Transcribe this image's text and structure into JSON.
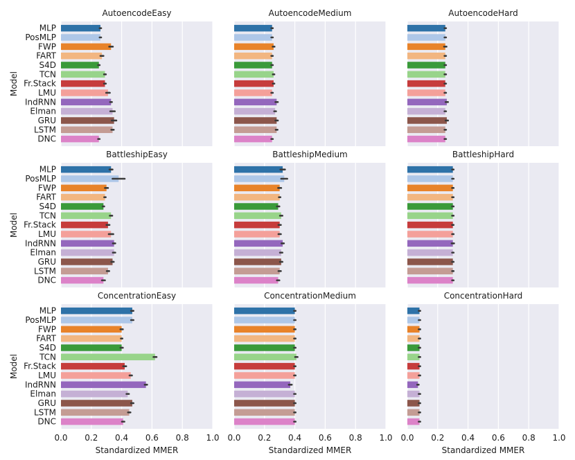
{
  "chart_data": {
    "type": "bar",
    "orientation": "horizontal",
    "grid": true,
    "xlabel": "Standardized MMER",
    "ylabel": "Model",
    "xlim": [
      0.0,
      1.0
    ],
    "xticks": [
      "0.0",
      "0.2",
      "0.4",
      "0.6",
      "0.8",
      "1.0"
    ],
    "models": [
      "MLP",
      "PosMLP",
      "FWP",
      "FART",
      "S4D",
      "TCN",
      "Fr.Stack",
      "LMU",
      "IndRNN",
      "Elman",
      "GRU",
      "LSTM",
      "DNC"
    ],
    "colors": [
      "#2e72a8",
      "#aec7e8",
      "#e8832a",
      "#f2b681",
      "#3a9a3a",
      "#98d48a",
      "#c63c3c",
      "#f4a09a",
      "#9467bd",
      "#c5b0d5",
      "#8c564b",
      "#c49c94",
      "#dc82c8"
    ],
    "panels": [
      {
        "title": "AutoencodeEasy",
        "values": [
          0.26,
          0.26,
          0.33,
          0.27,
          0.25,
          0.29,
          0.29,
          0.31,
          0.33,
          0.34,
          0.35,
          0.34,
          0.25
        ],
        "err": [
          0.005,
          0.005,
          0.012,
          0.01,
          0.005,
          0.006,
          0.006,
          0.012,
          0.006,
          0.015,
          0.015,
          0.008,
          0.005
        ]
      },
      {
        "title": "AutoencodeMedium",
        "values": [
          0.25,
          0.25,
          0.26,
          0.25,
          0.25,
          0.26,
          0.26,
          0.25,
          0.28,
          0.27,
          0.28,
          0.28,
          0.25
        ],
        "err": [
          0.005,
          0.005,
          0.006,
          0.005,
          0.005,
          0.005,
          0.005,
          0.005,
          0.008,
          0.006,
          0.008,
          0.006,
          0.005
        ]
      },
      {
        "title": "AutoencodeHard",
        "values": [
          0.25,
          0.25,
          0.25,
          0.25,
          0.25,
          0.25,
          0.25,
          0.25,
          0.26,
          0.25,
          0.26,
          0.25,
          0.25
        ],
        "err": [
          0.005,
          0.005,
          0.008,
          0.005,
          0.005,
          0.005,
          0.005,
          0.005,
          0.008,
          0.005,
          0.008,
          0.005,
          0.005
        ]
      },
      {
        "title": "BattleshipEasy",
        "values": [
          0.33,
          0.38,
          0.3,
          0.29,
          0.28,
          0.33,
          0.31,
          0.33,
          0.35,
          0.35,
          0.34,
          0.31,
          0.28
        ],
        "err": [
          0.01,
          0.04,
          0.01,
          0.005,
          0.005,
          0.008,
          0.01,
          0.015,
          0.008,
          0.008,
          0.008,
          0.008,
          0.01
        ]
      },
      {
        "title": "BattleshipMedium",
        "values": [
          0.32,
          0.33,
          0.3,
          0.3,
          0.29,
          0.31,
          0.3,
          0.3,
          0.32,
          0.31,
          0.31,
          0.3,
          0.29
        ],
        "err": [
          0.015,
          0.02,
          0.01,
          0.005,
          0.008,
          0.008,
          0.008,
          0.008,
          0.008,
          0.008,
          0.008,
          0.008,
          0.008
        ]
      },
      {
        "title": "BattleshipHard",
        "values": [
          0.3,
          0.3,
          0.3,
          0.3,
          0.3,
          0.3,
          0.3,
          0.3,
          0.3,
          0.3,
          0.3,
          0.3,
          0.3
        ],
        "err": [
          0.005,
          0.005,
          0.005,
          0.005,
          0.005,
          0.005,
          0.005,
          0.005,
          0.008,
          0.005,
          0.005,
          0.005,
          0.005
        ]
      },
      {
        "title": "ConcentrationEasy",
        "values": [
          0.47,
          0.47,
          0.4,
          0.4,
          0.4,
          0.62,
          0.42,
          0.46,
          0.56,
          0.44,
          0.47,
          0.45,
          0.41
        ],
        "err": [
          0.008,
          0.008,
          0.008,
          0.005,
          0.008,
          0.01,
          0.01,
          0.008,
          0.008,
          0.008,
          0.008,
          0.008,
          0.008
        ]
      },
      {
        "title": "ConcentrationMedium",
        "values": [
          0.4,
          0.4,
          0.4,
          0.4,
          0.4,
          0.41,
          0.4,
          0.4,
          0.37,
          0.4,
          0.4,
          0.4,
          0.4
        ],
        "err": [
          0.005,
          0.005,
          0.005,
          0.005,
          0.005,
          0.008,
          0.005,
          0.005,
          0.01,
          0.005,
          0.005,
          0.005,
          0.005
        ]
      },
      {
        "title": "ConcentrationHard",
        "values": [
          0.08,
          0.08,
          0.08,
          0.08,
          0.08,
          0.08,
          0.08,
          0.08,
          0.07,
          0.08,
          0.08,
          0.08,
          0.08
        ],
        "err": [
          0.005,
          0.005,
          0.005,
          0.005,
          0.005,
          0.005,
          0.005,
          0.005,
          0.005,
          0.005,
          0.005,
          0.005,
          0.005
        ]
      }
    ]
  }
}
